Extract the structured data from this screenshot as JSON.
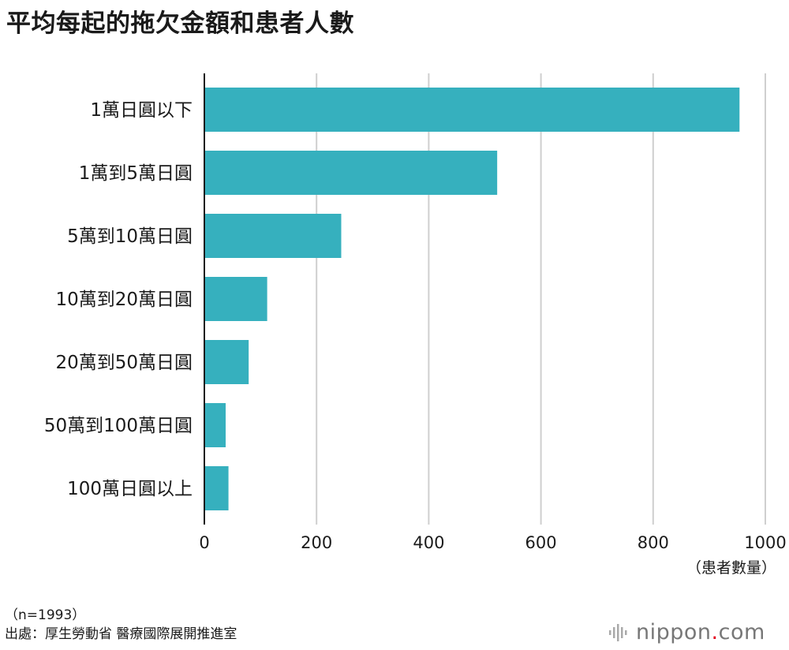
{
  "title": "平均每起的拖欠金額和患者人數",
  "chart_data": {
    "type": "bar",
    "orientation": "horizontal",
    "title": "平均每起的拖欠金額和患者人數",
    "categories": [
      "1萬日圓以下",
      "1萬到5萬日圓",
      "5萬到10萬日圓",
      "10萬到20萬日圓",
      "20萬到50萬日圓",
      "50萬到100萬日圓",
      "100萬日圓以上"
    ],
    "values": [
      954,
      522,
      244,
      112,
      79,
      38,
      43
    ],
    "xlim": [
      0,
      1000
    ],
    "xticks": [
      "0",
      "200",
      "400",
      "600",
      "800",
      "1000"
    ],
    "xlabel": "（患者數量）",
    "bar_color": "#36b0be",
    "grid": true
  },
  "notes": {
    "sample": "（n=1993）",
    "source": "出處：厚生勞動省 醫療國際展開推進室"
  },
  "brand": {
    "name": "nippon",
    "dot": ".",
    "suffix": "com"
  }
}
